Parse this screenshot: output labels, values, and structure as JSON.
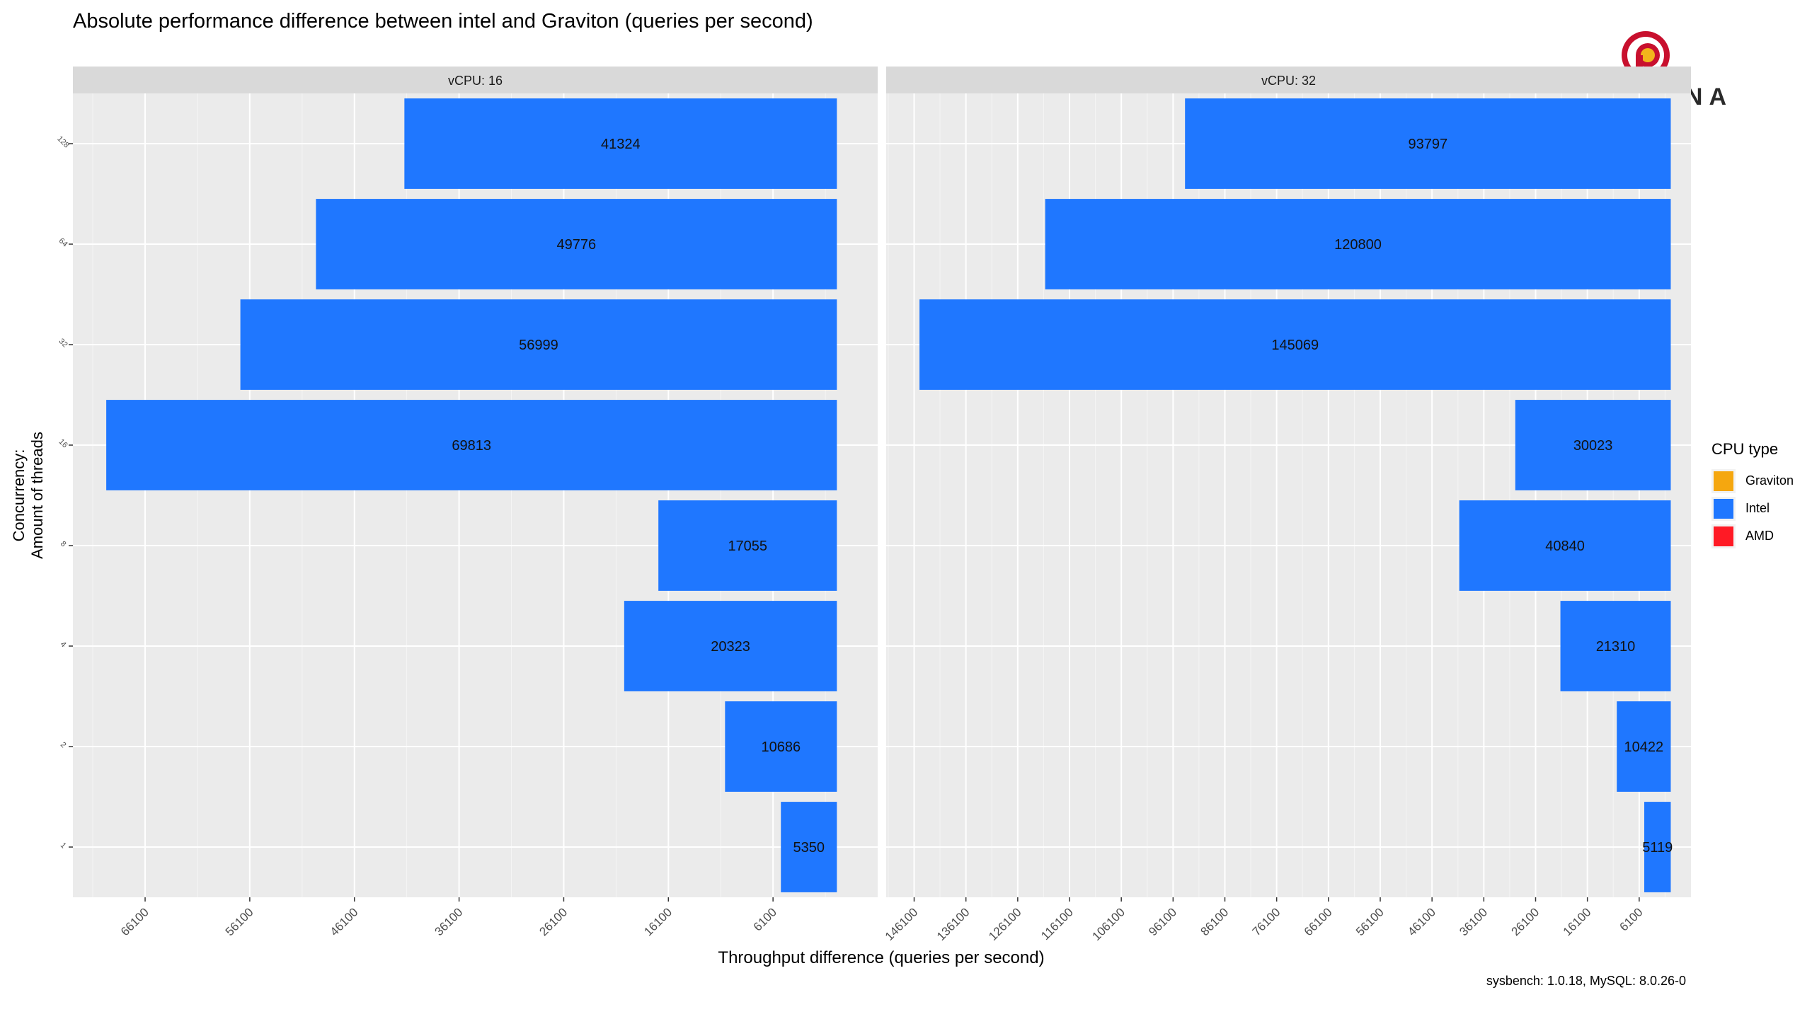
{
  "title": "Absolute performance difference between intel and Graviton (queries per second)",
  "brand": {
    "name": "PERCONA",
    "colors": {
      "ring": "#c8102e",
      "center": "#f2b51c"
    }
  },
  "chart_data": {
    "type": "bar",
    "orientation": "horizontal",
    "xlabel": "Throughput difference (queries per second)",
    "ylabel": "Concurrency:\nAmount of threads",
    "caption": "sysbench: 1.0.18, MySQL: 8.0.26-0",
    "x_axis_reversed": true,
    "legend": {
      "title": "CPU type",
      "position": "right",
      "items": [
        {
          "label": "Graviton",
          "color": "#f5a70f"
        },
        {
          "label": "Intel",
          "color": "#1f77ff"
        },
        {
          "label": "AMD",
          "color": "#ff1a25"
        }
      ]
    },
    "categories": [
      "1",
      "2",
      "4",
      "8",
      "16",
      "32",
      "64",
      "128"
    ],
    "panels": [
      {
        "strip": "vCPU: 16",
        "xlim": [
          -3900,
          73000
        ],
        "ticks": [
          66100,
          56100,
          46100,
          36100,
          26100,
          16100,
          6100
        ],
        "series": [
          {
            "name": "Intel",
            "color": "#1f77ff",
            "values": [
              5350,
              10686,
              20323,
              17055,
              69813,
              56999,
              49776,
              41324
            ]
          }
        ]
      },
      {
        "strip": "vCPU: 32",
        "xlim": [
          -3900,
          151500
        ],
        "ticks": [
          146100,
          136100,
          126100,
          116100,
          106100,
          96100,
          86100,
          76100,
          66100,
          56100,
          46100,
          36100,
          26100,
          16100,
          6100
        ],
        "series": [
          {
            "name": "Intel",
            "color": "#1f77ff",
            "values": [
              5119,
              10422,
              21310,
              40840,
              30023,
              145069,
              120800,
              93797
            ]
          }
        ]
      }
    ]
  }
}
